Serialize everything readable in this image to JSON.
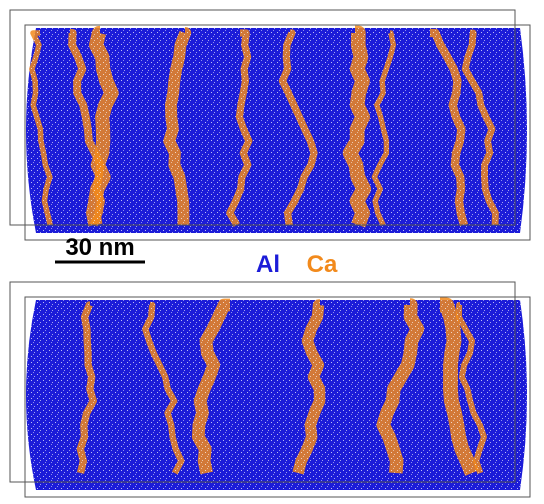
{
  "scale_bar": {
    "label": "30 nm"
  },
  "legend": {
    "items": [
      {
        "label": "Al",
        "color": "#1c1cd8"
      },
      {
        "label": "Ca",
        "color": "#f28a1c"
      }
    ]
  }
}
